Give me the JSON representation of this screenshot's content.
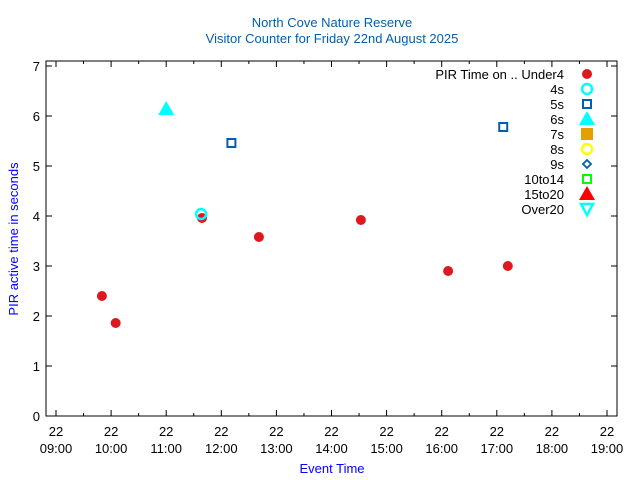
{
  "chart_data": {
    "type": "scatter",
    "title": [
      "North Cove Nature Reserve",
      "Visitor Counter for Friday 22nd August 2025"
    ],
    "xlabel": "Event Time",
    "ylabel": "PIR active time in seconds",
    "xlim_minutes": [
      540,
      1140
    ],
    "ylim": [
      0,
      7
    ],
    "x_ticks": [
      {
        "minutes": 540,
        "day": "22",
        "time": "09:00"
      },
      {
        "minutes": 600,
        "day": "22",
        "time": "10:00"
      },
      {
        "minutes": 660,
        "day": "22",
        "time": "11:00"
      },
      {
        "minutes": 720,
        "day": "22",
        "time": "12:00"
      },
      {
        "minutes": 780,
        "day": "22",
        "time": "13:00"
      },
      {
        "minutes": 840,
        "day": "22",
        "time": "14:00"
      },
      {
        "minutes": 900,
        "day": "22",
        "time": "15:00"
      },
      {
        "minutes": 960,
        "day": "22",
        "time": "16:00"
      },
      {
        "minutes": 1020,
        "day": "22",
        "time": "17:00"
      },
      {
        "minutes": 1080,
        "day": "22",
        "time": "18:00"
      },
      {
        "minutes": 1140,
        "day": "22",
        "time": "19:00"
      }
    ],
    "y_ticks": [
      "0",
      "1",
      "2",
      "3",
      "4",
      "5",
      "6",
      "7"
    ],
    "grid": false,
    "legend_position": "top-right",
    "series": [
      {
        "name": "PIR Time on .. Under4",
        "marker": "circle-filled",
        "color": "#dd181f",
        "points": [
          {
            "x": "09:50",
            "y": 2.4
          },
          {
            "x": "10:05",
            "y": 1.86
          },
          {
            "x": "11:39",
            "y": 3.96
          },
          {
            "x": "12:41",
            "y": 3.58
          },
          {
            "x": "14:32",
            "y": 3.92
          },
          {
            "x": "16:07",
            "y": 2.9
          },
          {
            "x": "17:12",
            "y": 3.0
          }
        ]
      },
      {
        "name": "4s",
        "marker": "circle-open",
        "color": "#00ffff",
        "points": [
          {
            "x": "11:38",
            "y": 4.04
          }
        ]
      },
      {
        "name": "5s",
        "marker": "square-open",
        "color": "#0060ad",
        "points": [
          {
            "x": "12:11",
            "y": 5.46
          },
          {
            "x": "17:07",
            "y": 5.78
          }
        ]
      },
      {
        "name": "6s",
        "marker": "triangle-filled",
        "color": "#00ffff",
        "points": [
          {
            "x": "11:00",
            "y": 6.14
          }
        ]
      },
      {
        "name": "7s",
        "marker": "square-filled",
        "color": "#e69f00",
        "points": []
      },
      {
        "name": "8s",
        "marker": "circle-open",
        "color": "#ffff00",
        "points": []
      },
      {
        "name": "9s",
        "marker": "diamond-open",
        "color": "#0060ad",
        "points": []
      },
      {
        "name": "10to14",
        "marker": "square-open",
        "color": "#00ff00",
        "points": []
      },
      {
        "name": "15to20",
        "marker": "triangle-filled",
        "color": "#ff0000",
        "points": []
      },
      {
        "name": "Over20",
        "marker": "triangle-down-open",
        "color": "#00ffff",
        "points": []
      }
    ]
  }
}
